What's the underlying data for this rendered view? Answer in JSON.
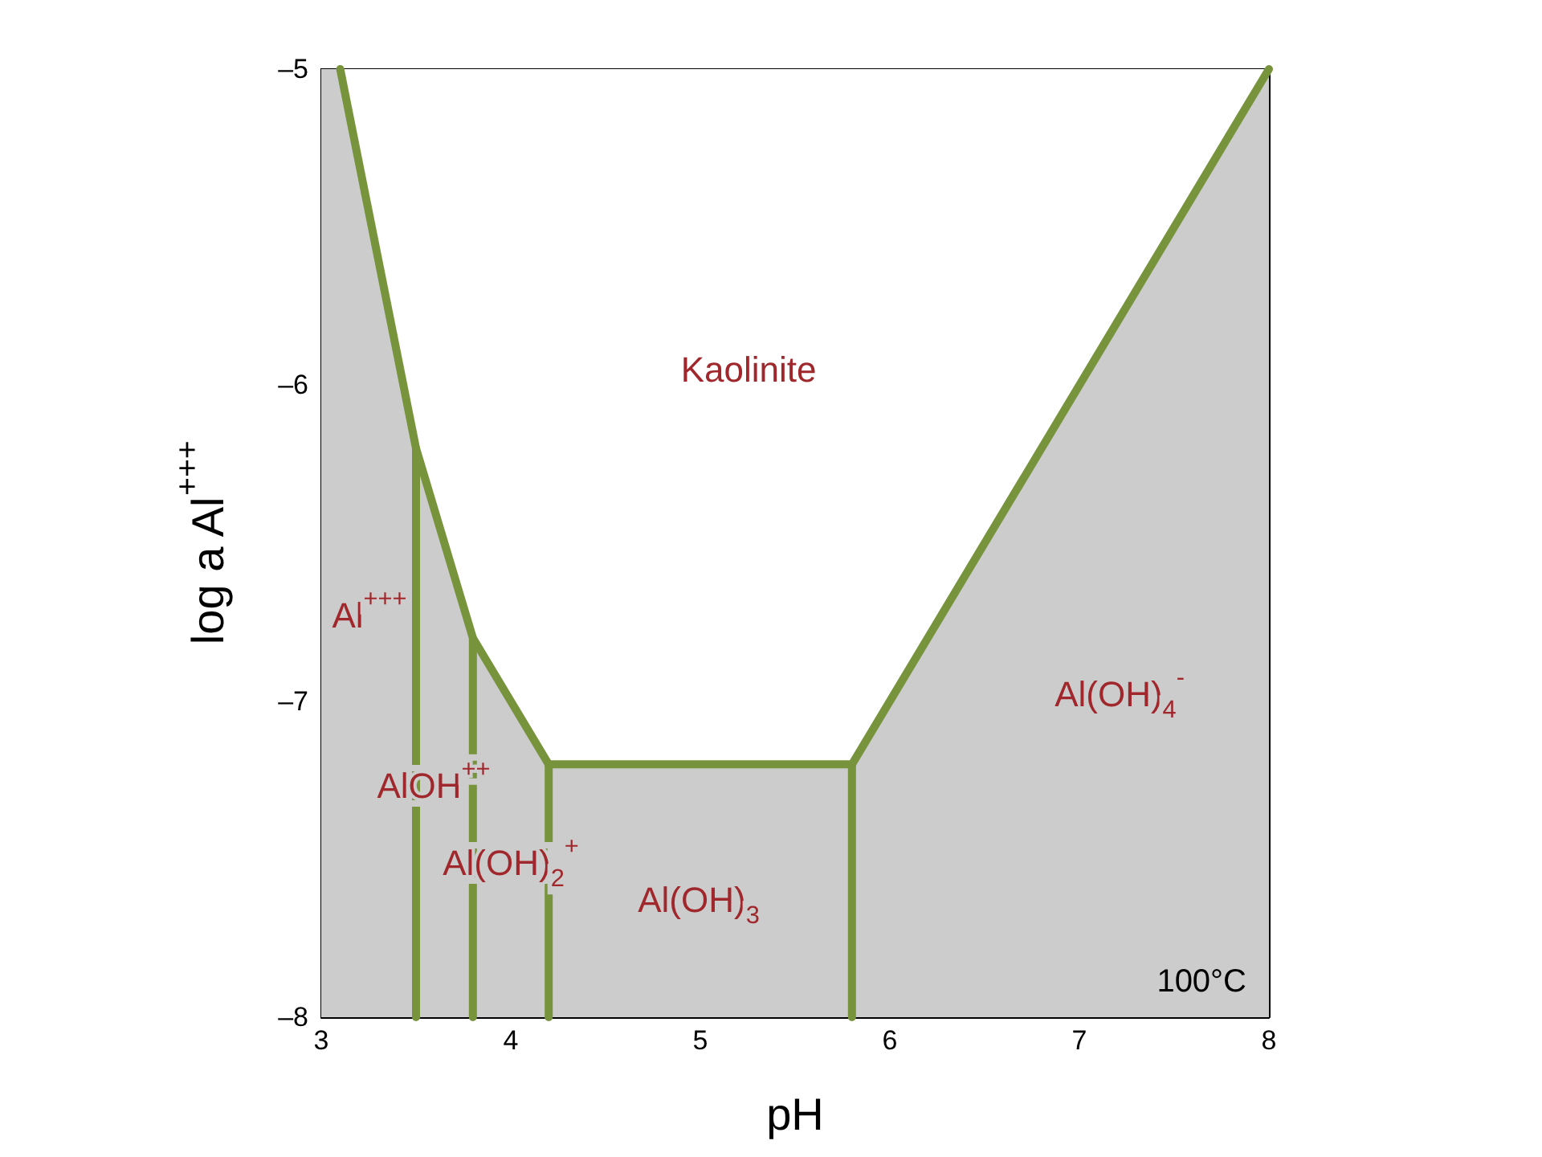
{
  "chart_data": {
    "type": "line",
    "xlabel": "pH",
    "ylabel": "log a Al$^{+++}$",
    "xlim": [
      3,
      8
    ],
    "xticks": [
      3,
      4,
      5,
      6,
      7,
      8
    ],
    "ylim": [
      -8,
      -5
    ],
    "yticks": [
      {
        "value": -8,
        "label": "–8"
      },
      {
        "value": -7,
        "label": "–7"
      },
      {
        "value": -6,
        "label": "–6"
      },
      {
        "value": -5,
        "label": "–5"
      }
    ],
    "marker": "none",
    "line_style": "solid",
    "bands": [
      {
        "axis": "y",
        "from": -8,
        "to": -5,
        "color": "#cccccc"
      }
    ],
    "series": [
      {
        "type": "area",
        "color": "#77933c",
        "x": [
          3.1,
          3.5,
          3.8,
          4.2,
          5.8,
          8
        ],
        "values": [
          -5,
          -6.2,
          -6.8,
          -7.2,
          -7.2,
          -5
        ]
      },
      {
        "color": "#77933c",
        "x": [
          3.5,
          3.5
        ],
        "values": [
          -6.2,
          -8
        ]
      },
      {
        "color": "#77933c",
        "x": [
          3.8,
          3.8
        ],
        "values": [
          -6.8,
          -8
        ]
      },
      {
        "color": "#77933c",
        "x": [
          4.2,
          4.2
        ],
        "values": [
          -7.2,
          -8
        ]
      },
      {
        "color": "#77933c",
        "x": [
          5.8,
          5.8
        ],
        "values": [
          -7.2,
          -8
        ]
      }
    ],
    "annotations": [
      "Kaolinite",
      "Al$^{+++}$",
      "AlOH$^{++}$",
      "Al(OH)$_{2}$$^{+}$",
      "Al(OH)$_{3}$",
      "Al(OH)$_{4}$$^{-}$",
      "100°C"
    ]
  }
}
